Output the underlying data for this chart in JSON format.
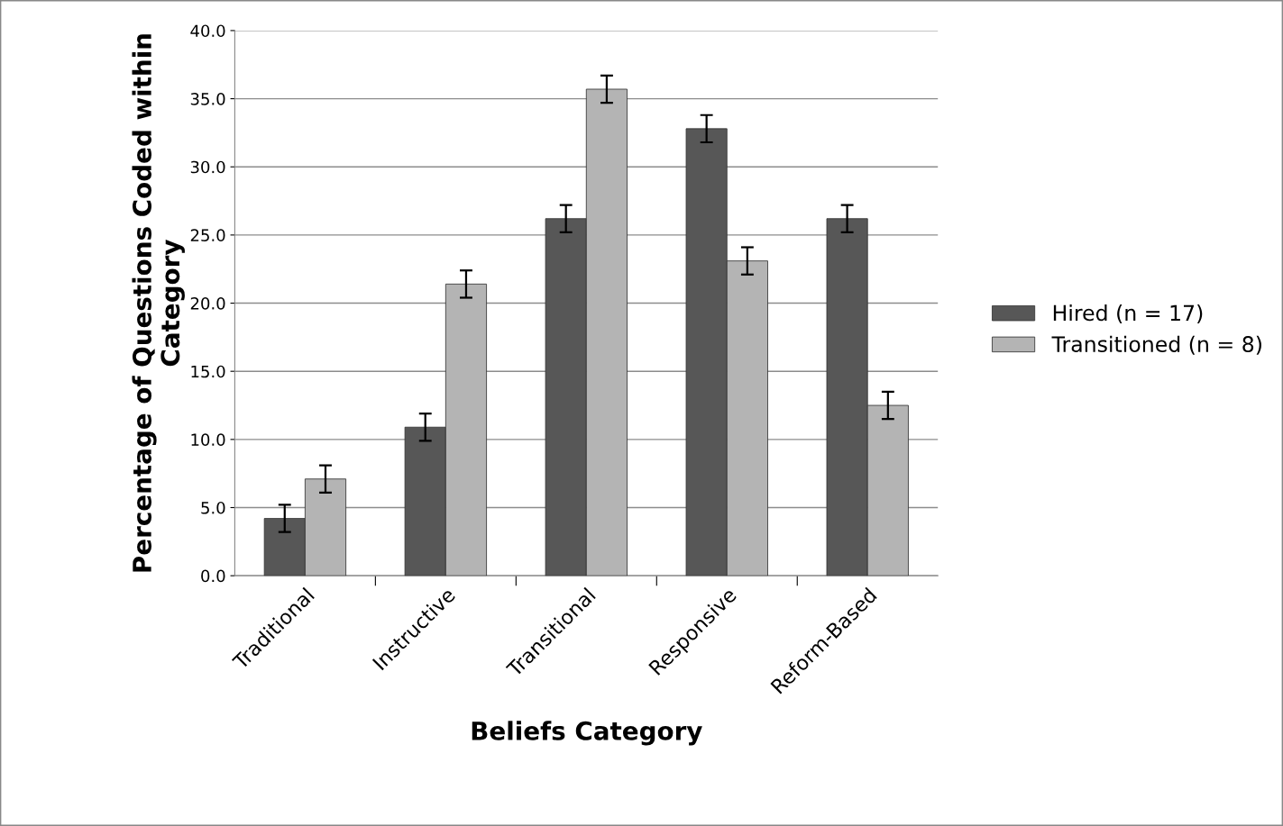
{
  "chart_data": {
    "type": "bar",
    "xlabel": "Beliefs Category",
    "ylabel": "Percentage of Questions Coded within Category",
    "categories": [
      "Traditional",
      "Instructive",
      "Transitional",
      "Responsive",
      "Reform-Based"
    ],
    "series": [
      {
        "name": "Hired (n = 17)",
        "color": "#575757",
        "values": [
          4.2,
          10.9,
          26.2,
          32.8,
          26.2
        ],
        "errors": [
          1.0,
          1.0,
          1.0,
          1.0,
          1.0
        ]
      },
      {
        "name": "Transitioned (n = 8)",
        "color": "#b4b4b4",
        "values": [
          7.1,
          21.4,
          35.7,
          23.1,
          12.5
        ],
        "errors": [
          1.0,
          1.0,
          1.0,
          1.0,
          1.0
        ]
      }
    ],
    "ylim": [
      0,
      40
    ],
    "yticks": [
      {
        "value": 0,
        "label": "0.0"
      },
      {
        "value": 5,
        "label": "5.0"
      },
      {
        "value": 10,
        "label": "10.0"
      },
      {
        "value": 15,
        "label": "15.0"
      },
      {
        "value": 20,
        "label": "20.0"
      },
      {
        "value": 25,
        "label": "25.0"
      },
      {
        "value": 30,
        "label": "30.0"
      },
      {
        "value": 35,
        "label": "35.0"
      },
      {
        "value": 40,
        "label": "40.0"
      }
    ],
    "grid": "y",
    "legend": "right"
  }
}
